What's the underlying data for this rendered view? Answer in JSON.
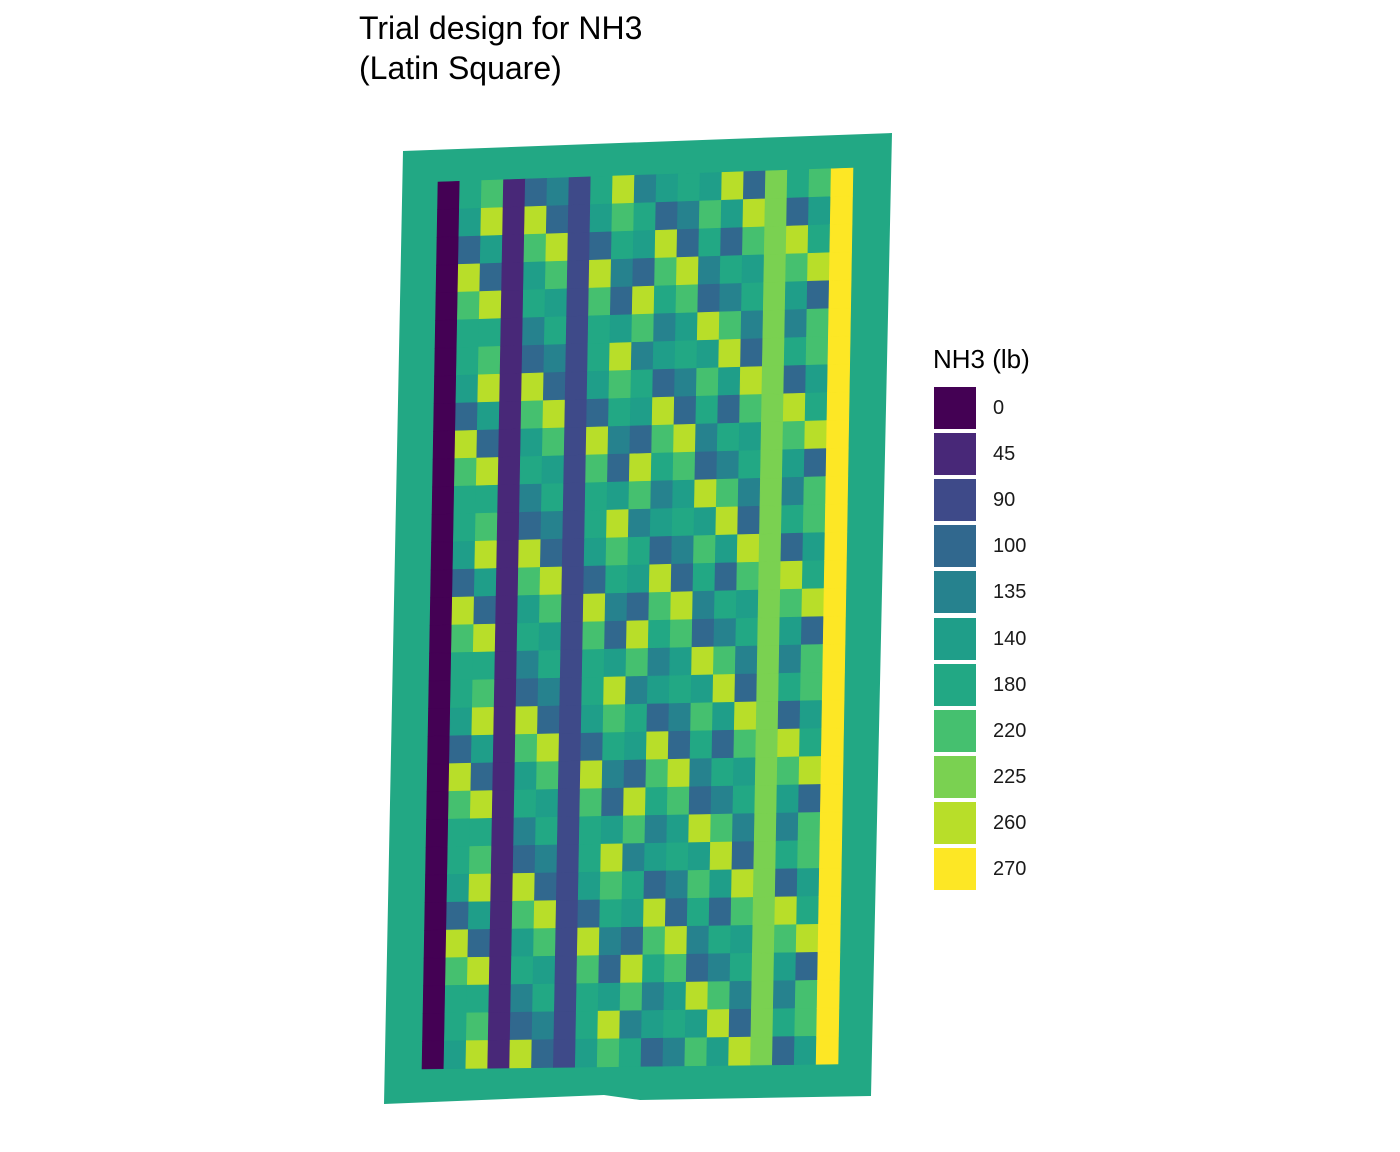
{
  "chart_data": {
    "type": "heatmap",
    "title": "Trial design for NH3\n(Latin Square)",
    "title_lines": [
      "Trial design for NH3",
      "(Latin Square)"
    ],
    "legend_title": "NH3 (lb)",
    "legend_position": "right",
    "grid": false,
    "levels": [
      {
        "value": "0",
        "color": "#440154"
      },
      {
        "value": "45",
        "color": "#482878"
      },
      {
        "value": "90",
        "color": "#3E4A89"
      },
      {
        "value": "100",
        "color": "#31688E"
      },
      {
        "value": "135",
        "color": "#26828E"
      },
      {
        "value": "140",
        "color": "#1F9E89"
      },
      {
        "value": "180",
        "color": "#22A884"
      },
      {
        "value": "220",
        "color": "#45C06F"
      },
      {
        "value": "225",
        "color": "#7AD151"
      },
      {
        "value": "260",
        "color": "#B8DE29"
      },
      {
        "value": "270",
        "color": "#FDE725"
      }
    ],
    "headland_rate": 180,
    "rows_count": 32,
    "columns": [
      {
        "rate": 0
      },
      {
        "pattern": [
          180,
          140,
          100,
          260,
          220,
          180
        ]
      },
      {
        "pattern": [
          220,
          260,
          140,
          100,
          260,
          180
        ]
      },
      {
        "rate": 45
      },
      {
        "pattern": [
          100,
          260,
          220,
          140,
          180,
          135
        ]
      },
      {
        "pattern": [
          135,
          100,
          260,
          220,
          140,
          180
        ]
      },
      {
        "rate": 90
      },
      {
        "pattern": [
          180,
          140,
          100,
          260,
          220,
          180
        ]
      },
      {
        "pattern": [
          260,
          220,
          180,
          135,
          100,
          140
        ]
      },
      {
        "pattern": [
          135,
          180,
          140,
          100,
          260,
          220
        ]
      },
      {
        "pattern": [
          140,
          100,
          260,
          220,
          180,
          135
        ]
      },
      {
        "pattern": [
          180,
          135,
          100,
          260,
          220,
          140
        ]
      },
      {
        "pattern": [
          140,
          220,
          180,
          135,
          100,
          260
        ]
      },
      {
        "pattern": [
          260,
          140,
          100,
          180,
          135,
          220
        ]
      },
      {
        "pattern": [
          100,
          260,
          220,
          140,
          180,
          135
        ]
      },
      {
        "rate": 225
      },
      {
        "pattern": [
          180,
          100,
          260,
          220,
          140,
          135
        ]
      },
      {
        "pattern": [
          220,
          140,
          180,
          260,
          100,
          220
        ]
      },
      {
        "rate": 270
      }
    ]
  }
}
